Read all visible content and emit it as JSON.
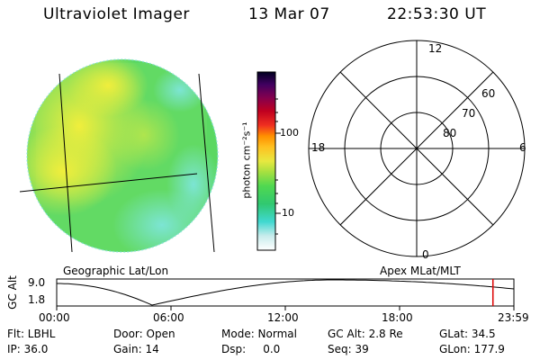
{
  "header": {
    "title": "Ultraviolet Imager",
    "date": "13 Mar 07",
    "time": "22:53:30 UT"
  },
  "colorbar": {
    "unit_label": "photon cm⁻²s⁻¹",
    "ticks": [
      "100",
      "10"
    ]
  },
  "polar_plot": {
    "mlt_labels": {
      "top": "12",
      "right": "6",
      "bottom": "0",
      "left": "18"
    },
    "lat_labels": [
      "60",
      "70",
      "80"
    ]
  },
  "map_labels": {
    "left_caption": "Geographic Lat/Lon",
    "right_caption": "Apex MLat/MLT"
  },
  "orbit": {
    "y_title": "GC Alt",
    "y_ticks": [
      "9.0",
      "1.8"
    ],
    "x_ticks": [
      "00:00",
      "06:00",
      "12:00",
      "18:00",
      "23:59"
    ],
    "marker_time_hours": 22.9,
    "marker_color": "#dd0000"
  },
  "status": {
    "row1": [
      {
        "key": "flt",
        "text": "Flt: LBHL"
      },
      {
        "key": "door",
        "text": "Door: Open"
      },
      {
        "key": "mode",
        "text": "Mode: Normal"
      },
      {
        "key": "gcalt",
        "text": "GC Alt: 2.8 Re"
      },
      {
        "key": "glat",
        "text": "GLat: 34.5"
      }
    ],
    "row2": [
      {
        "key": "ip",
        "text": "IP: 36.0"
      },
      {
        "key": "gain",
        "text": "Gain: 14"
      },
      {
        "key": "dsp",
        "text": "Dsp:     0.0"
      },
      {
        "key": "seq",
        "text": "Seq: 39"
      },
      {
        "key": "glon",
        "text": "GLon: 177.9"
      }
    ]
  },
  "colors": {
    "disk_main": "#5ad862",
    "disk_bright": "#e6ea3a",
    "disk_mid": "#a8e450",
    "disk_dim": "#4fd8c8"
  }
}
